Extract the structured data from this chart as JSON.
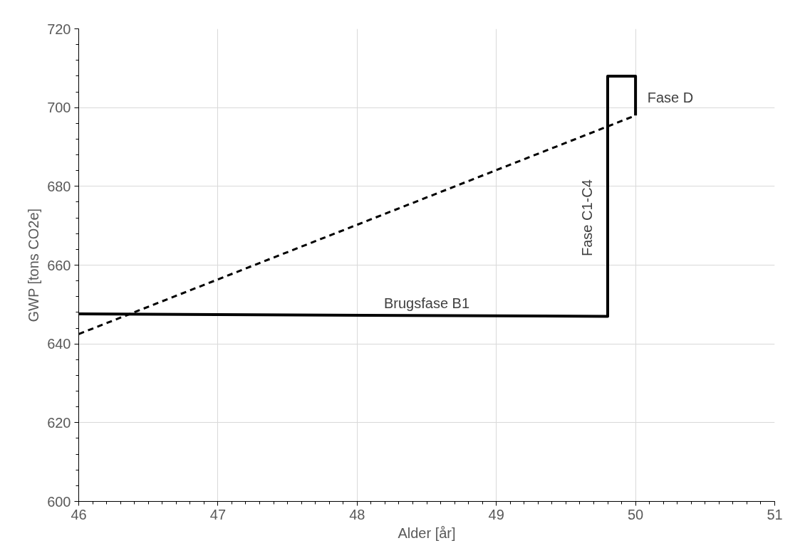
{
  "chart_data": {
    "type": "line",
    "xlabel": "Alder [år]",
    "ylabel": "GWP [tons CO2e]",
    "series": [
      {
        "color": "#000000",
        "line_style": "solid",
        "x": [
          46,
          49.8,
          49.8,
          50,
          50
        ],
        "values": [
          647.6,
          647,
          708,
          708,
          698
        ]
      },
      {
        "color": "#000000",
        "line_style": "dashed",
        "x": [
          46,
          50
        ],
        "values": [
          642.5,
          698
        ]
      }
    ],
    "annotations": [
      "Brugsfase B1",
      "Fase C1-C4",
      "Fase D"
    ],
    "xlim": [
      46,
      51
    ],
    "xticks": [
      46,
      47,
      48,
      49,
      50,
      51
    ],
    "ylim": [
      600,
      720
    ],
    "yticks": [
      600,
      620,
      640,
      660,
      680,
      700,
      720
    ],
    "grid": true,
    "marker": "none"
  }
}
